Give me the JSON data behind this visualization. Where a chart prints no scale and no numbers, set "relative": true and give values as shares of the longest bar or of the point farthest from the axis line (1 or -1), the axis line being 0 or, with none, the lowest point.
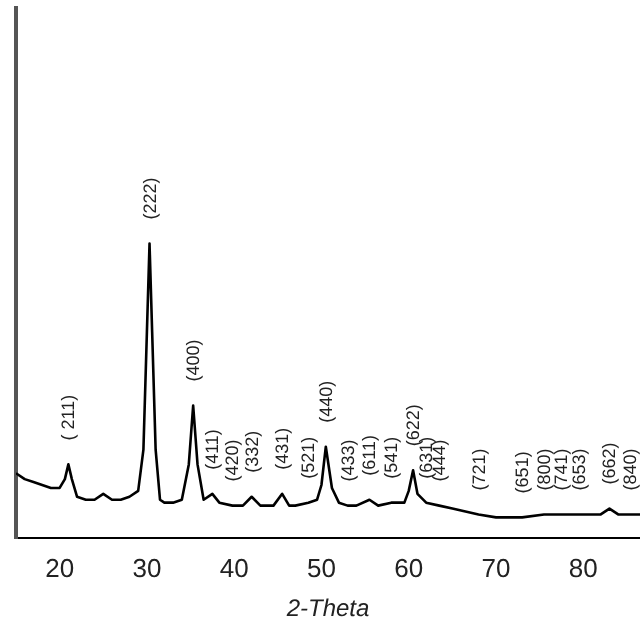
{
  "chart_data": {
    "type": "line",
    "xlabel": "2-Theta",
    "relative": true,
    "tick_labels": "x",
    "grid": false,
    "legend": false,
    "marker": "none",
    "line_style": "solid",
    "xlim": [
      15,
      86.5
    ],
    "xticks": [
      20,
      30,
      40,
      50,
      60,
      70,
      80
    ],
    "series": [
      {
        "color": "#000000",
        "x": [
          15,
          16,
          17,
          18,
          19,
          20,
          20.6,
          21,
          21.4,
          22,
          23,
          24,
          25,
          26,
          27,
          28,
          29,
          29.6,
          30,
          30.3,
          30.6,
          31,
          31.5,
          32,
          33,
          34,
          34.8,
          35.3,
          35.8,
          36.5,
          37.5,
          38.3,
          39.8,
          41,
          42,
          43,
          44.5,
          45.5,
          46.3,
          47,
          48.5,
          49.5,
          50,
          50.5,
          51.2,
          52,
          53,
          54,
          55.5,
          56.5,
          58,
          59.5,
          60,
          60.5,
          61,
          62,
          63.5,
          65,
          66.5,
          68,
          70,
          72,
          73,
          75.5,
          77.5,
          79.5,
          82,
          83,
          84,
          85.3,
          86.5
        ],
        "values": [
          0.22,
          0.2,
          0.19,
          0.18,
          0.17,
          0.17,
          0.2,
          0.25,
          0.2,
          0.14,
          0.13,
          0.13,
          0.15,
          0.13,
          0.13,
          0.14,
          0.16,
          0.3,
          0.7,
          1.0,
          0.7,
          0.3,
          0.13,
          0.12,
          0.12,
          0.13,
          0.25,
          0.45,
          0.25,
          0.13,
          0.15,
          0.12,
          0.11,
          0.11,
          0.14,
          0.11,
          0.11,
          0.15,
          0.11,
          0.11,
          0.12,
          0.13,
          0.18,
          0.31,
          0.17,
          0.12,
          0.11,
          0.11,
          0.13,
          0.11,
          0.12,
          0.12,
          0.16,
          0.23,
          0.15,
          0.12,
          0.11,
          0.1,
          0.09,
          0.08,
          0.07,
          0.07,
          0.07,
          0.08,
          0.08,
          0.08,
          0.08,
          0.1,
          0.08,
          0.08,
          0.08
        ]
      }
    ],
    "annotations": [
      {
        "text": "( 211)",
        "x": 21,
        "y": 0.25
      },
      {
        "text": "(222)",
        "x": 30.3,
        "y": 1.0
      },
      {
        "text": "(400)",
        "x": 35.3,
        "y": 0.45
      },
      {
        "text": "(411)",
        "x": 37.5,
        "y": 0.15
      },
      {
        "text": "(420)",
        "x": 39.8,
        "y": 0.11
      },
      {
        "text": "(332)",
        "x": 42,
        "y": 0.14
      },
      {
        "text": "(431)",
        "x": 45.5,
        "y": 0.15
      },
      {
        "text": "(521)",
        "x": 48.5,
        "y": 0.12
      },
      {
        "text": "(440)",
        "x": 50.5,
        "y": 0.31
      },
      {
        "text": "(433)",
        "x": 53,
        "y": 0.11
      },
      {
        "text": "(611)",
        "x": 55.5,
        "y": 0.13
      },
      {
        "text": "(541)",
        "x": 58,
        "y": 0.12
      },
      {
        "text": "(622)",
        "x": 60.5,
        "y": 0.23
      },
      {
        "text": "(631)",
        "x": 62,
        "y": 0.12
      },
      {
        "text": "(444)",
        "x": 63.5,
        "y": 0.11
      },
      {
        "text": "(721)",
        "x": 68,
        "y": 0.08
      },
      {
        "text": "(651)",
        "x": 73,
        "y": 0.07
      },
      {
        "text": "(800)",
        "x": 75.5,
        "y": 0.08
      },
      {
        "text": "(741)",
        "x": 77.5,
        "y": 0.08
      },
      {
        "text": "(653)",
        "x": 79.5,
        "y": 0.08
      },
      {
        "text": "(662)",
        "x": 83,
        "y": 0.1
      },
      {
        "text": "(840)",
        "x": 85.3,
        "y": 0.08
      }
    ]
  }
}
